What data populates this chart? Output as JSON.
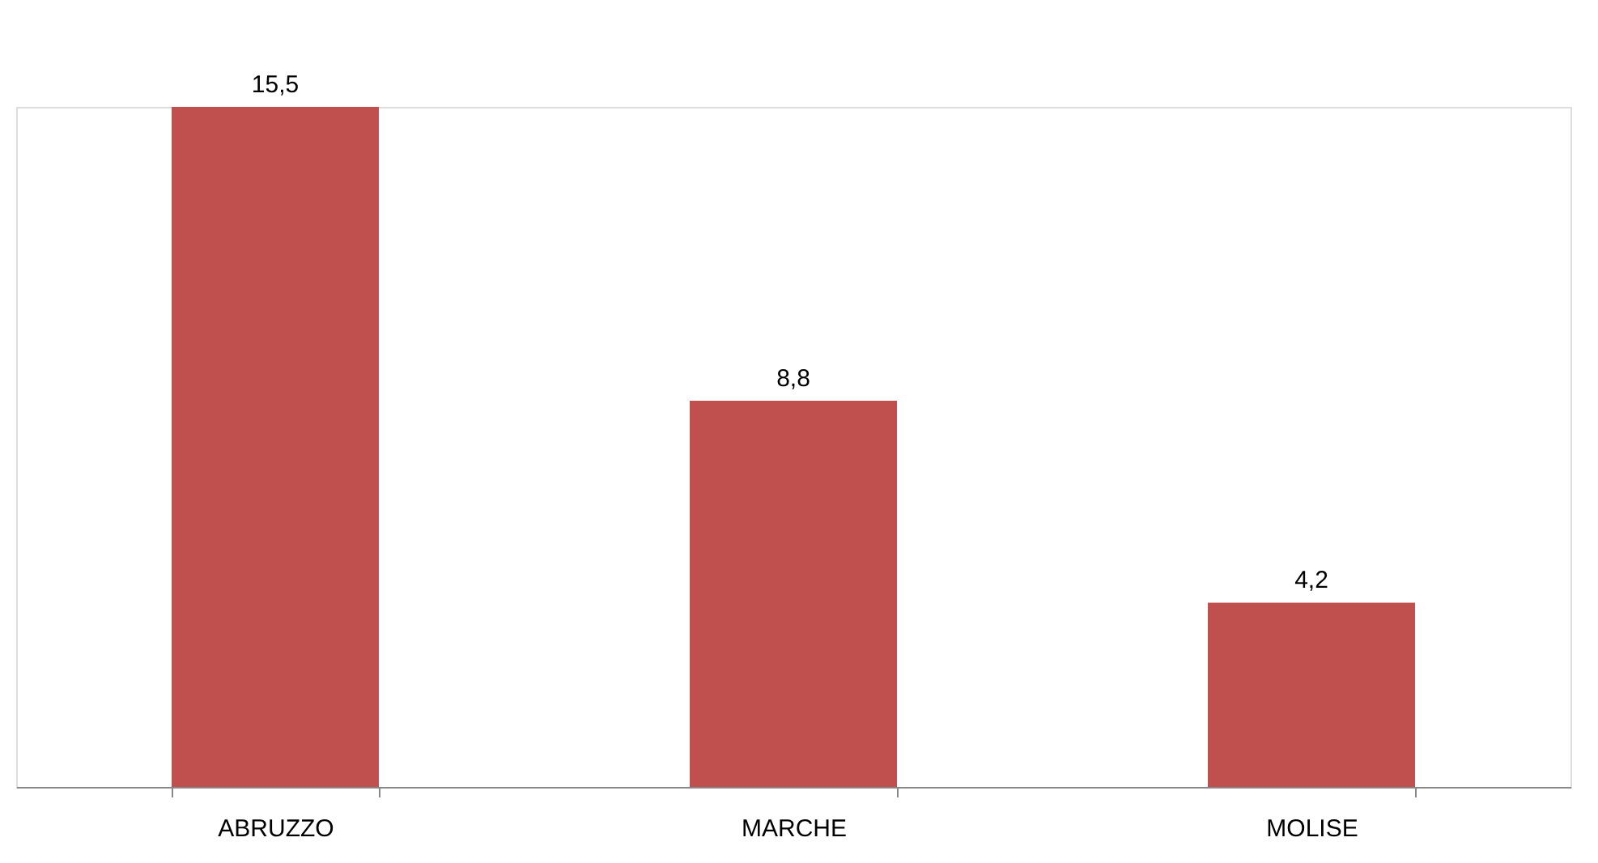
{
  "chart_data": {
    "type": "bar",
    "categories": [
      "ABRUZZO",
      "MARCHE",
      "MOLISE"
    ],
    "values": [
      15.5,
      8.8,
      4.2
    ],
    "value_labels": [
      "15,5",
      "8,8",
      "4,2"
    ],
    "color": "#c0504d",
    "grid": false
  }
}
